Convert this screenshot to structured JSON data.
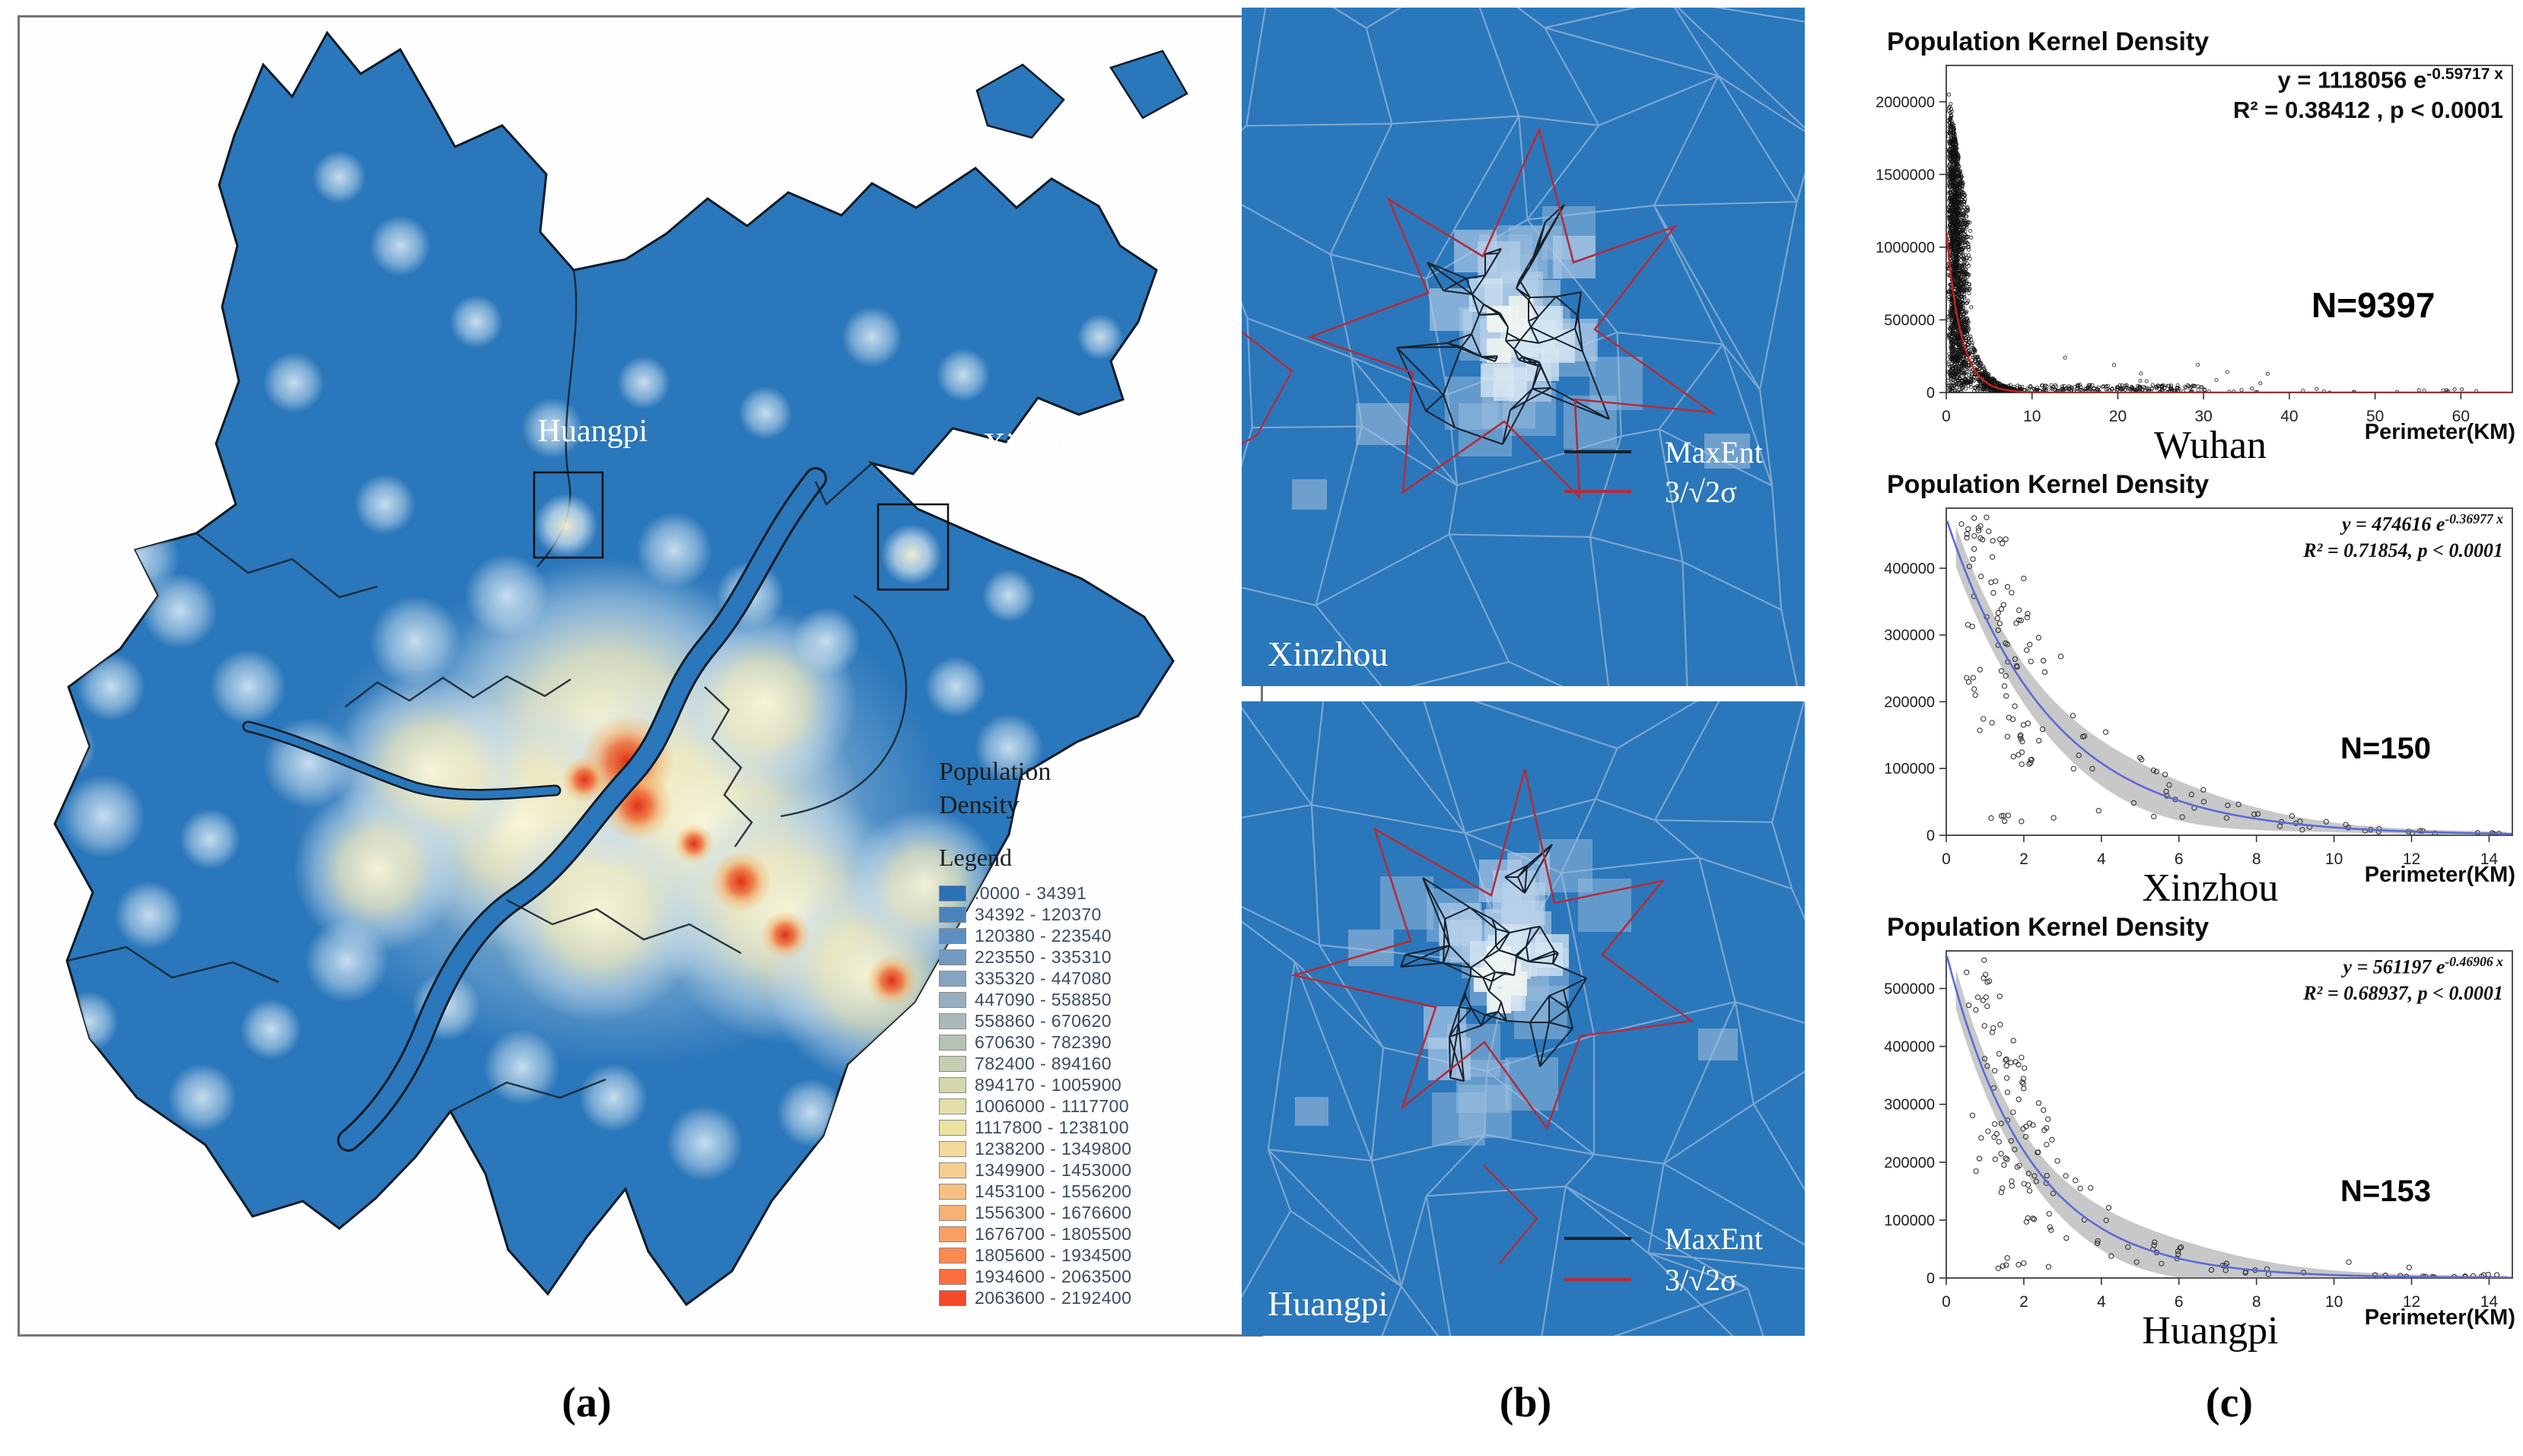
{
  "panel_a": {
    "caption": "(a)",
    "map_color": "#2b77bb",
    "legend": {
      "title_line1": "Population",
      "title_line2": "Density",
      "subtitle": "Legend",
      "items": [
        {
          "range": ".0000 - 34391",
          "color": "#2a72b5"
        },
        {
          "range": "34392 - 120370",
          "color": "#4a83bc"
        },
        {
          "range": "120380 - 223540",
          "color": "#5e8ec2"
        },
        {
          "range": "223550 - 335310",
          "color": "#7399c1"
        },
        {
          "range": "335320 - 447080",
          "color": "#86a3c0"
        },
        {
          "range": "447090 - 558850",
          "color": "#98aebe"
        },
        {
          "range": "558860 - 670620",
          "color": "#a9b9ba"
        },
        {
          "range": "670630 - 782390",
          "color": "#b7c2b6"
        },
        {
          "range": "782400 - 894160",
          "color": "#c5cdb2"
        },
        {
          "range": "894170 - 1005900",
          "color": "#d4d6ae"
        },
        {
          "range": "1006000 - 1117700",
          "color": "#e1dea9"
        },
        {
          "range": "1117800 - 1238100",
          "color": "#ece3a2"
        },
        {
          "range": "1238200 - 1349800",
          "color": "#f3da9b"
        },
        {
          "range": "1349900 - 1453000",
          "color": "#f6cd90"
        },
        {
          "range": "1453100 - 1556200",
          "color": "#f7c083"
        },
        {
          "range": "1556300 - 1676600",
          "color": "#f8b175"
        },
        {
          "range": "1676700 - 1805500",
          "color": "#f99f64"
        },
        {
          "range": "1805600 - 1934500",
          "color": "#f98a52"
        },
        {
          "range": "1934600 - 2063500",
          "color": "#f96f40"
        },
        {
          "range": "2063600 - 2192400",
          "color": "#f44a2a"
        }
      ]
    },
    "map_labels": {
      "huangpi": "Huangpi",
      "xinzhou": "Xinzhou"
    }
  },
  "panel_b": {
    "caption": "(b)",
    "background": "#2b77bb",
    "maps": [
      {
        "label": "Xinzhou",
        "legend": [
          {
            "label": "MaxEnt",
            "color": "#16222e"
          },
          {
            "label": "3/√2σ",
            "color": "#b22d3c"
          }
        ]
      },
      {
        "label": "Huangpi",
        "legend": [
          {
            "label": "MaxEnt",
            "color": "#16222e"
          },
          {
            "label": "3/√2σ",
            "color": "#b22d3c"
          }
        ]
      }
    ]
  },
  "panel_c": {
    "caption": "(c)"
  },
  "chart_data": [
    {
      "type": "scatter",
      "title": "Population Kernel Density",
      "region": "Wuhan",
      "xlabel": "Perimeter(KM)",
      "ylabel": "",
      "n": 9397,
      "n_label": "N=9397",
      "equation": "y = 1118056 e^(-0.59717 x)",
      "eq_base": "y = 1118056  e",
      "eq_exp": "-0.59717 x",
      "eq_line2": "R² = 0.38412 ,  p < 0.0001",
      "fit": {
        "a": 1118056,
        "b": -0.59717
      },
      "r2": 0.38412,
      "p": "< 0.0001",
      "xlim": [
        0,
        66
      ],
      "ylim": [
        0,
        2250000
      ],
      "x_ticks": [
        0,
        10,
        20,
        30,
        40,
        50,
        60
      ],
      "y_ticks": [
        0,
        500000,
        1000000,
        1500000,
        2000000
      ],
      "curve_color": "#cc1f1f",
      "point_color": "#111111",
      "band": false,
      "grid": false,
      "scatter_model": "dense column of ~9397 points at perimeter < 2 KM spanning 0 to 2.2M, exponential-decay fan to x≈10, near-zero tail out to x≈65",
      "seed": 11
    },
    {
      "type": "scatter",
      "title": "Population Kernel Density",
      "region": "Xinzhou",
      "xlabel": "Perimeter(KM)",
      "ylabel": "",
      "n": 150,
      "n_label": "N=150",
      "equation": "y = 474616 e^(-0.36977 x)",
      "eq_base": "y = 474616 e",
      "eq_exp": "-0.36977 x",
      "eq_line2": "R² = 0.71854,  p < 0.0001",
      "fit": {
        "a": 474616,
        "b": -0.36977
      },
      "r2": 0.71854,
      "p": "< 0.0001",
      "xlim": [
        0,
        14.6
      ],
      "ylim": [
        0,
        490000
      ],
      "x_ticks": [
        0,
        2,
        4,
        6,
        8,
        10,
        12,
        14
      ],
      "y_ticks": [
        0,
        100000,
        200000,
        300000,
        400000
      ],
      "curve_color": "#5b6bd5",
      "point_color": "#333333",
      "band": true,
      "band_color": "#9a9a9a",
      "grid": false,
      "scatter_model": "150 points clustered 0.3-3 KM between 180000-475000 with exponential-decay tail to 14.3 KM and a few near-zero stragglers",
      "seed": 22
    },
    {
      "type": "scatter",
      "title": "Population Kernel Density",
      "region": "Huangpi",
      "xlabel": "Perimeter(KM)",
      "ylabel": "",
      "n": 153,
      "n_label": "N=153",
      "equation": "y = 561197 e^(-0.46906 x)",
      "eq_base": "y = 561197 e",
      "eq_exp": "-0.46906 x",
      "eq_line2": "R² = 0.68937,  p < 0.0001",
      "fit": {
        "a": 561197,
        "b": -0.46906
      },
      "r2": 0.68937,
      "p": "< 0.0001",
      "xlim": [
        0,
        14.6
      ],
      "ylim": [
        0,
        565000
      ],
      "x_ticks": [
        0,
        2,
        4,
        6,
        8,
        10,
        12,
        14
      ],
      "y_ticks": [
        0,
        100000,
        200000,
        300000,
        400000,
        500000
      ],
      "curve_color": "#5b6bd5",
      "point_color": "#333333",
      "band": true,
      "band_color": "#9a9a9a",
      "grid": false,
      "scatter_model": "153 points clustered 0.3-3 KM between 120000-540000 with exponential-decay tail to 14.2 KM and a few near-zero stragglers",
      "seed": 33
    }
  ]
}
